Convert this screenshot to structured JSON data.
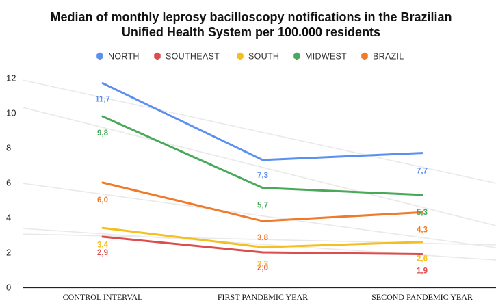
{
  "chart_data": {
    "type": "line",
    "title_lines": [
      "Median of monthly leprosy bacilloscopy notifications in the Brazilian",
      "Unified Health System per 100.000 residents"
    ],
    "categories": [
      "CONTROL INTERVAL",
      "FIRST PANDEMIC YEAR",
      "SECOND PANDEMIC YEAR"
    ],
    "ylim": [
      0,
      12
    ],
    "yticks": [
      0,
      2,
      4,
      6,
      8,
      10,
      12
    ],
    "legend_position": "top-center",
    "grid": false,
    "series": [
      {
        "name": "NORTH",
        "color": "#5b8ff0",
        "marker": "hexagon",
        "values": [
          11.7,
          7.3,
          7.7
        ],
        "labels": [
          "11,7",
          "7,3",
          "7,7"
        ]
      },
      {
        "name": "SOUTHEAST",
        "color": "#dd4d4d",
        "marker": "hexagon",
        "values": [
          2.9,
          2.0,
          1.9
        ],
        "labels": [
          "2,9",
          "2,0",
          "1,9"
        ]
      },
      {
        "name": "SOUTH",
        "color": "#f4c020",
        "marker": "hexagon",
        "values": [
          3.4,
          2.3,
          2.6
        ],
        "labels": [
          "3,4",
          "2,3",
          "2,6"
        ]
      },
      {
        "name": "MIDWEST",
        "color": "#4aa85a",
        "marker": "hexagon",
        "values": [
          9.8,
          5.7,
          5.3
        ],
        "labels": [
          "9,8",
          "5,7",
          "5,3"
        ]
      },
      {
        "name": "BRAZIL",
        "color": "#f07a28",
        "marker": "hexagon",
        "values": [
          6.0,
          3.8,
          4.3
        ],
        "labels": [
          "6,0",
          "3,8",
          "4,3"
        ]
      }
    ]
  }
}
